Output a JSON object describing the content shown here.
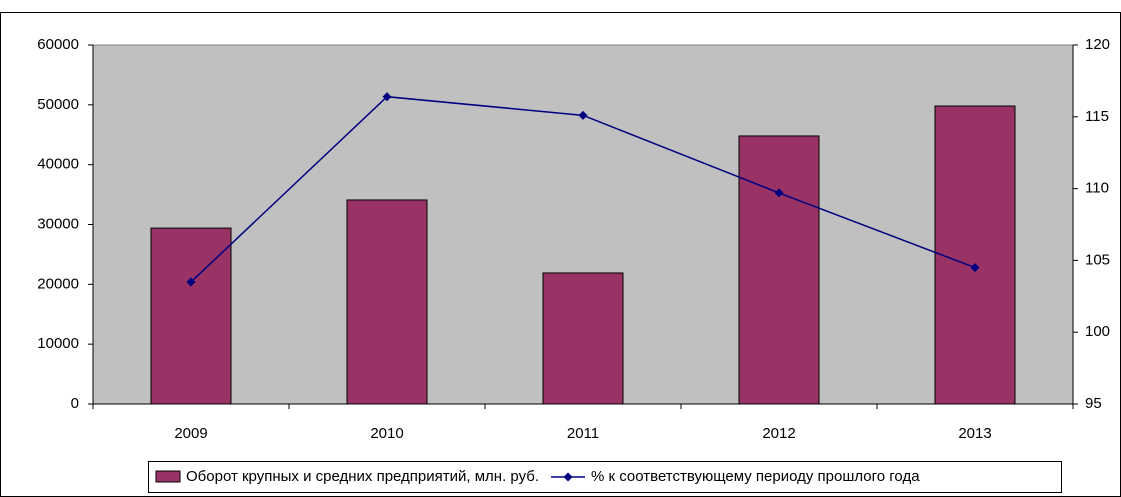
{
  "chart_data": {
    "type": "bar",
    "categories": [
      "2009",
      "2010",
      "2011",
      "2012",
      "2013"
    ],
    "series": [
      {
        "name": "Оборот крупных и средних предприятий, млн. руб.",
        "type": "bar",
        "color": "#993366",
        "values": [
          29400,
          34100,
          21900,
          44800,
          49800
        ]
      },
      {
        "name": "% к соответствующему периоду прошлого года",
        "type": "line",
        "axis": "y2",
        "color": "#000080",
        "values": [
          103.5,
          116.4,
          115.1,
          109.7,
          104.5
        ]
      }
    ],
    "ylim": [
      0,
      60000
    ],
    "yticks": [
      0,
      10000,
      20000,
      30000,
      40000,
      50000,
      60000
    ],
    "y2lim": [
      95,
      120
    ],
    "y2ticks": [
      95,
      100,
      105,
      110,
      115,
      120
    ],
    "plot_background": "#c0c0c0",
    "grid": false,
    "legend": "bottom"
  }
}
